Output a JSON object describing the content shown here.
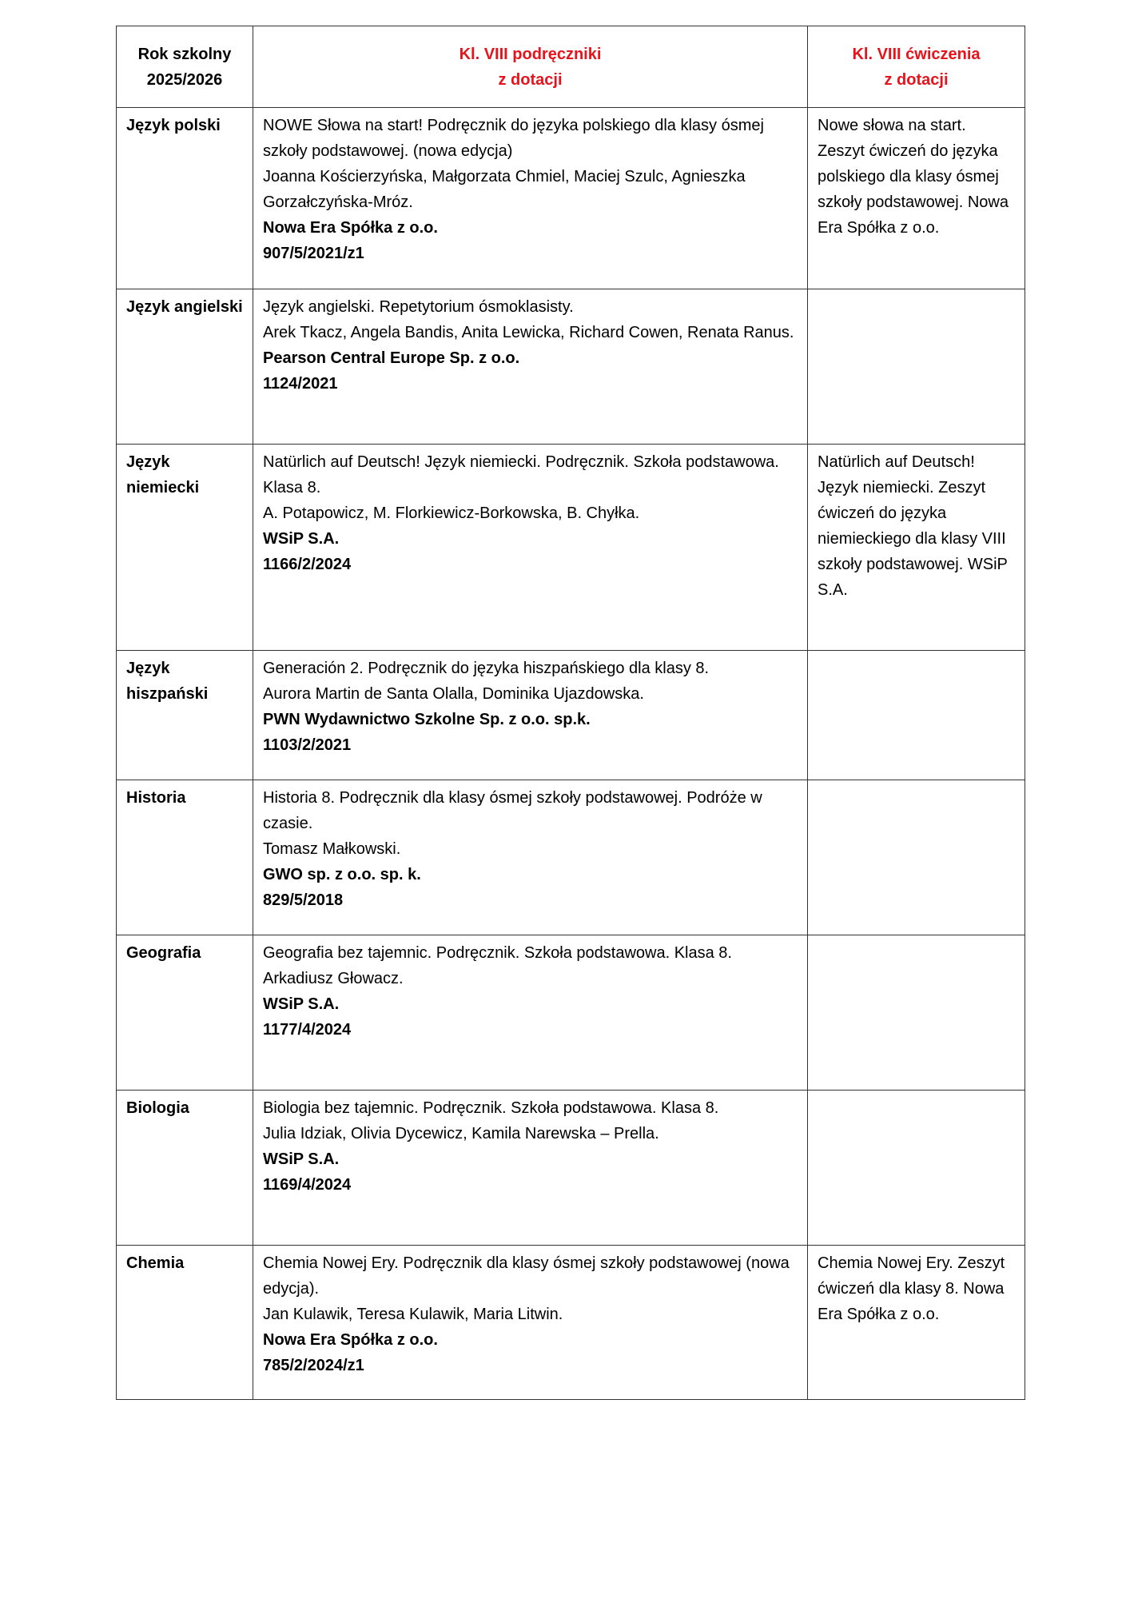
{
  "header": {
    "col1": [
      "Rok szkolny",
      "2025/2026"
    ],
    "col2": [
      "Kl. VIII podręczniki",
      "z dotacji"
    ],
    "col3": [
      "Kl. VIII ćwiczenia",
      "z dotacji"
    ]
  },
  "colors": {
    "header_accent": "#e8121b"
  },
  "rows": [
    {
      "subject": "Język polski",
      "book": [
        "NOWE Słowa na start! Podręcznik do języka polskiego dla klasy ósmej szkoły podstawowej. (nowa edycja)",
        "Joanna Kościerzyńska, Małgorzata Chmiel, Maciej Szulc, Agnieszka Gorzałczyńska-Mróz."
      ],
      "publisher": "Nowa Era Spółka z o.o.",
      "number": "907/5/2021/z1",
      "exercise": "Nowe słowa na start. Zeszyt ćwiczeń do języka polskiego dla klasy ósmej szkoły podstawowej. Nowa Era Spółka z o.o."
    },
    {
      "subject": "Język angielski",
      "book": [
        "Język angielski. Repetytorium ósmoklasisty.",
        "Arek Tkacz, Angela Bandis, Anita Lewicka, Richard Cowen, Renata Ranus."
      ],
      "publisher": "Pearson Central Europe Sp. z o.o.",
      "number": "1124/2021",
      "exercise": ""
    },
    {
      "subject": "Język niemiecki",
      "book": [
        "Natürlich auf Deutsch! Język niemiecki. Podręcznik. Szkoła podstawowa. Klasa 8.",
        "A. Potapowicz, M. Florkiewicz-Borkowska, B. Chyłka."
      ],
      "publisher": "WSiP S.A.",
      "number": "1166/2/2024",
      "exercise": "Natürlich auf Deutsch! Język niemiecki. Zeszyt ćwiczeń do języka niemieckiego dla klasy VIII szkoły podstawowej. WSiP S.A."
    },
    {
      "subject": "Język hiszpański",
      "book": [
        "Generación 2. Podręcznik do języka hiszpańskiego dla klasy 8.",
        "Aurora Martin de Santa Olalla, Dominika Ujazdowska."
      ],
      "publisher": "PWN Wydawnictwo Szkolne Sp. z o.o. sp.k.",
      "number": "1103/2/2021",
      "exercise": ""
    },
    {
      "subject": "Historia",
      "book": [
        "Historia 8. Podręcznik dla klasy ósmej szkoły podstawowej. Podróże w czasie.",
        "Tomasz Małkowski."
      ],
      "publisher": "GWO sp. z o.o. sp. k.",
      "number": "829/5/2018",
      "exercise": ""
    },
    {
      "subject": "Geografia",
      "book": [
        "Geografia bez tajemnic. Podręcznik. Szkoła podstawowa. Klasa 8.",
        "Arkadiusz Głowacz."
      ],
      "publisher": "WSiP S.A.",
      "number": "1177/4/2024",
      "exercise": ""
    },
    {
      "subject": "Biologia",
      "book": [
        "Biologia bez tajemnic. Podręcznik. Szkoła podstawowa. Klasa 8.",
        "Julia Idziak, Olivia Dycewicz, Kamila Narewska – Prella."
      ],
      "publisher": "WSiP S.A.",
      "number": "1169/4/2024",
      "exercise": ""
    },
    {
      "subject": "Chemia",
      "book": [
        "Chemia Nowej Ery. Podręcznik dla klasy ósmej szkoły podstawowej (nowa edycja).",
        "Jan Kulawik, Teresa Kulawik, Maria Litwin."
      ],
      "publisher": "Nowa Era Spółka z o.o.",
      "number": "785/2/2024/z1",
      "exercise": "Chemia Nowej Ery. Zeszyt ćwiczeń dla klasy 8. Nowa Era Spółka z o.o."
    }
  ]
}
